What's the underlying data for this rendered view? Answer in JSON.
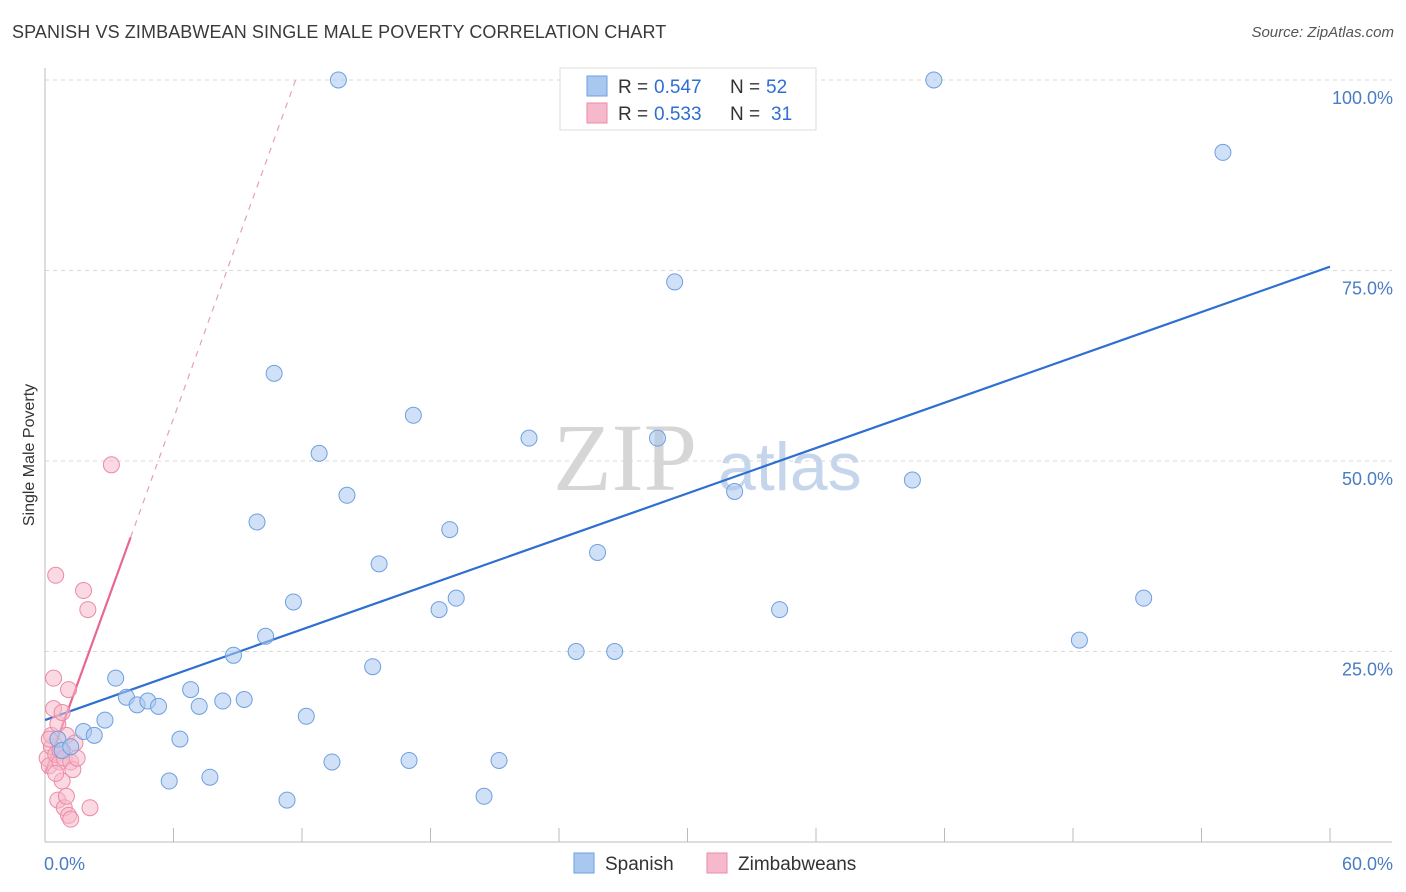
{
  "title": "SPANISH VS ZIMBABWEAN SINGLE MALE POVERTY CORRELATION CHART",
  "source": "Source: ZipAtlas.com",
  "watermark": {
    "zip": "ZIP",
    "atlas": "atlas"
  },
  "colors": {
    "spanish_fill": "#a9c8f0",
    "spanish_stroke": "#6e9fe0",
    "spanish_line": "#2f6fd0",
    "zimb_fill": "#f6b9cb",
    "zimb_stroke": "#ec8aa8",
    "zimb_line": "#e8688f",
    "grid": "#d8d8d8",
    "tick_label": "#4a7cc4"
  },
  "legend": {
    "spanish": {
      "r_label": "R =",
      "r_value": "0.547",
      "n_label": "N =",
      "n_value": "52"
    },
    "zimbabwean": {
      "r_label": "R =",
      "r_value": "0.533",
      "n_label": "N =",
      "n_value": "31"
    }
  },
  "chart_data": {
    "type": "scatter",
    "title": "SPANISH VS ZIMBABWEAN SINGLE MALE POVERTY CORRELATION CHART",
    "xlabel": "",
    "ylabel": "Single Male Poverty",
    "xlim": [
      0,
      60
    ],
    "ylim": [
      0,
      100
    ],
    "x_tick_labels": [
      "0.0%",
      "60.0%"
    ],
    "y_tick_labels": [
      "25.0%",
      "50.0%",
      "75.0%",
      "100.0%"
    ],
    "y_ticks": [
      25,
      50,
      75,
      100
    ],
    "series": [
      {
        "name": "Spanish",
        "points": [
          [
            0.6,
            13.5
          ],
          [
            0.8,
            12.0
          ],
          [
            1.2,
            12.5
          ],
          [
            1.8,
            14.5
          ],
          [
            2.3,
            14.0
          ],
          [
            2.8,
            16.0
          ],
          [
            3.3,
            21.5
          ],
          [
            3.8,
            19.0
          ],
          [
            4.3,
            18.0
          ],
          [
            4.8,
            18.5
          ],
          [
            5.3,
            17.8
          ],
          [
            5.8,
            8.0
          ],
          [
            6.3,
            13.5
          ],
          [
            6.8,
            20.0
          ],
          [
            7.2,
            17.8
          ],
          [
            7.7,
            8.5
          ],
          [
            8.3,
            18.5
          ],
          [
            8.8,
            24.5
          ],
          [
            9.3,
            18.7
          ],
          [
            9.9,
            42.0
          ],
          [
            10.3,
            27.0
          ],
          [
            10.7,
            61.5
          ],
          [
            11.3,
            5.5
          ],
          [
            11.6,
            31.5
          ],
          [
            12.2,
            16.5
          ],
          [
            12.8,
            51.0
          ],
          [
            13.4,
            10.5
          ],
          [
            13.7,
            103.0
          ],
          [
            14.1,
            45.5
          ],
          [
            15.3,
            23.0
          ],
          [
            15.6,
            36.5
          ],
          [
            17.0,
            10.7
          ],
          [
            17.2,
            56.0
          ],
          [
            18.4,
            30.5
          ],
          [
            18.9,
            41.0
          ],
          [
            19.2,
            32.0
          ],
          [
            20.5,
            6.0
          ],
          [
            21.2,
            10.7
          ],
          [
            22.6,
            53.0
          ],
          [
            24.8,
            25.0
          ],
          [
            25.8,
            38.0
          ],
          [
            26.6,
            25.0
          ],
          [
            28.2,
            103.0
          ],
          [
            28.6,
            53.0
          ],
          [
            29.4,
            73.5
          ],
          [
            32.2,
            46.0
          ],
          [
            34.3,
            30.5
          ],
          [
            40.5,
            47.5
          ],
          [
            41.5,
            103.0
          ],
          [
            48.3,
            26.5
          ],
          [
            51.3,
            32.0
          ],
          [
            55.0,
            90.5
          ]
        ],
        "trendline": {
          "x": [
            0,
            60
          ],
          "y": [
            16.0,
            75.5
          ]
        }
      },
      {
        "name": "Zimbabweans",
        "points": [
          [
            0.1,
            11.0
          ],
          [
            0.2,
            10.0
          ],
          [
            0.3,
            12.5
          ],
          [
            0.3,
            14.0
          ],
          [
            0.4,
            21.5
          ],
          [
            0.4,
            17.5
          ],
          [
            0.5,
            35.0
          ],
          [
            0.5,
            11.5
          ],
          [
            0.6,
            15.5
          ],
          [
            0.6,
            5.5
          ],
          [
            0.7,
            10.5
          ],
          [
            0.7,
            12.0
          ],
          [
            0.8,
            8.0
          ],
          [
            0.8,
            17.0
          ],
          [
            0.9,
            4.5
          ],
          [
            0.9,
            11.0
          ],
          [
            1.0,
            6.0
          ],
          [
            1.0,
            14.0
          ],
          [
            1.1,
            3.5
          ],
          [
            1.1,
            20.0
          ],
          [
            1.2,
            3.0
          ],
          [
            1.2,
            10.5
          ],
          [
            1.3,
            9.5
          ],
          [
            1.4,
            13.0
          ],
          [
            1.5,
            11.0
          ],
          [
            1.8,
            33.0
          ],
          [
            2.0,
            30.5
          ],
          [
            2.1,
            4.5
          ],
          [
            3.1,
            49.5
          ],
          [
            0.2,
            13.5
          ],
          [
            0.5,
            9.0
          ]
        ],
        "trendline": {
          "x": [
            0,
            4.0
          ],
          "y": [
            9.0,
            40.0
          ],
          "dashed_extension": {
            "x": [
              4.0,
              11.7
            ],
            "y": [
              40.0,
              100.0
            ]
          }
        }
      }
    ],
    "legend": [
      "Spanish",
      "Zimbabweans"
    ]
  }
}
